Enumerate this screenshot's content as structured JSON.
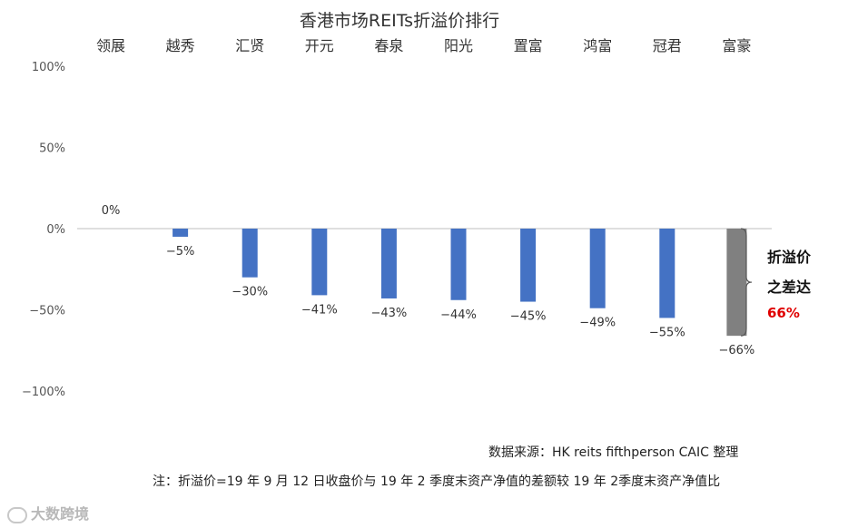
{
  "chart_data": {
    "type": "bar",
    "title": "香港市场REITs折溢价排行",
    "categories": [
      "领展",
      "越秀",
      "汇贤",
      "开元",
      "春泉",
      "阳光",
      "置富",
      "鸿富",
      "冠君",
      "富豪"
    ],
    "values": [
      0,
      -5,
      -30,
      -41,
      -43,
      -44,
      -45,
      -49,
      -55,
      -66
    ],
    "data_labels": [
      "0%",
      "−5%",
      "−30%",
      "−41%",
      "−43%",
      "−44%",
      "−45%",
      "−49%",
      "−55%",
      "−66%"
    ],
    "yticks": [
      "100%",
      "50%",
      "0%",
      "−50%",
      "−100%"
    ],
    "ytick_values": [
      100,
      50,
      0,
      -50,
      -100
    ],
    "ylim": [
      -100,
      100
    ],
    "xlabel": "",
    "ylabel": "",
    "grid": false,
    "legend": "none",
    "bar_color": "#4472c4",
    "highlight_color": "#808080",
    "highlight_index": 9
  },
  "annotation": {
    "line1": "折溢价",
    "line2": "之差达",
    "value": "66%",
    "value_color": "#e00000"
  },
  "source": "数据来源：HK reits fifthperson CAIC 整理",
  "note": "注：折溢价=19 年 9 月 12 日收盘价与 19 年 2 季度末资产净值的差额较 19 年 2季度末资产净值比",
  "watermark": "大数跨境"
}
